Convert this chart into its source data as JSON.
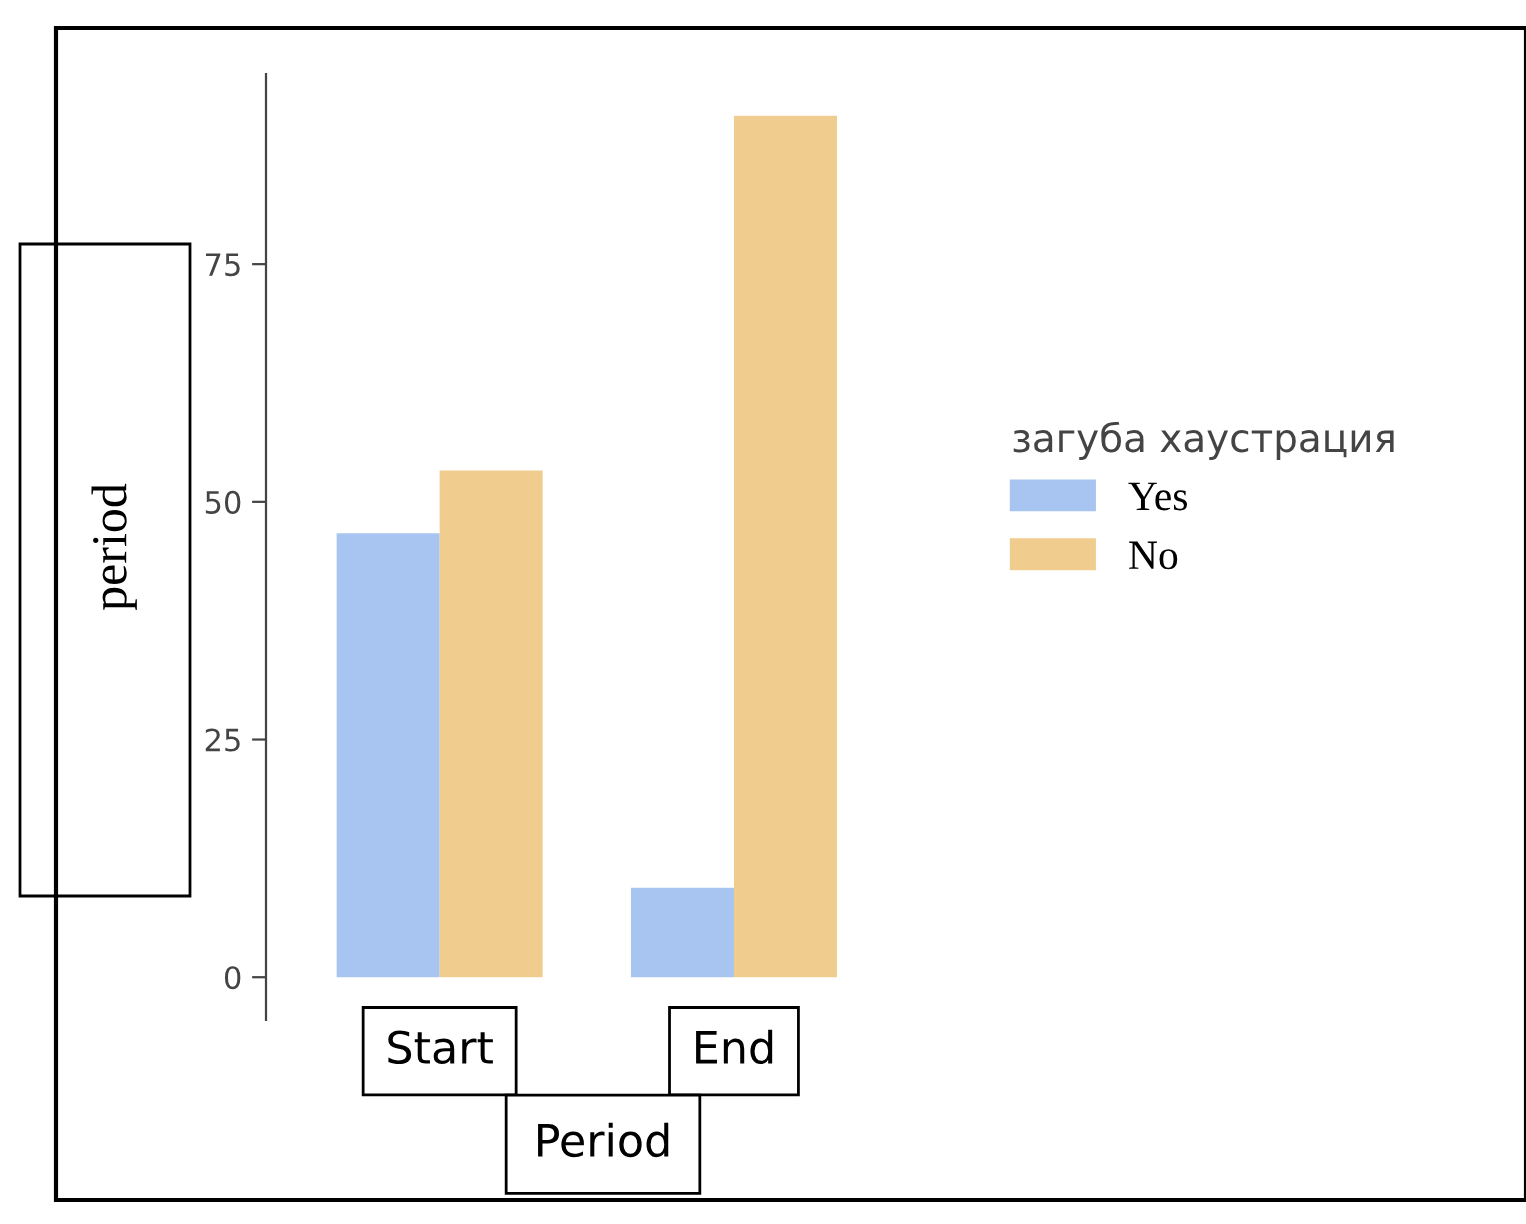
{
  "chart_data": {
    "type": "bar",
    "categories": [
      "Start",
      "End"
    ],
    "xlabel": "Period",
    "ylabel": "period",
    "legend_title": "загуба хаустрация",
    "series": [
      {
        "name": "Yes",
        "color": "#a7c5f0",
        "values": [
          46.7,
          9.4
        ]
      },
      {
        "name": "No",
        "color": "#f0cd8e",
        "values": [
          53.3,
          90.6
        ]
      }
    ],
    "ylim": [
      -4.5,
      95
    ],
    "yticks": [
      0,
      25,
      50,
      75
    ],
    "grid": false,
    "legend": "right"
  }
}
